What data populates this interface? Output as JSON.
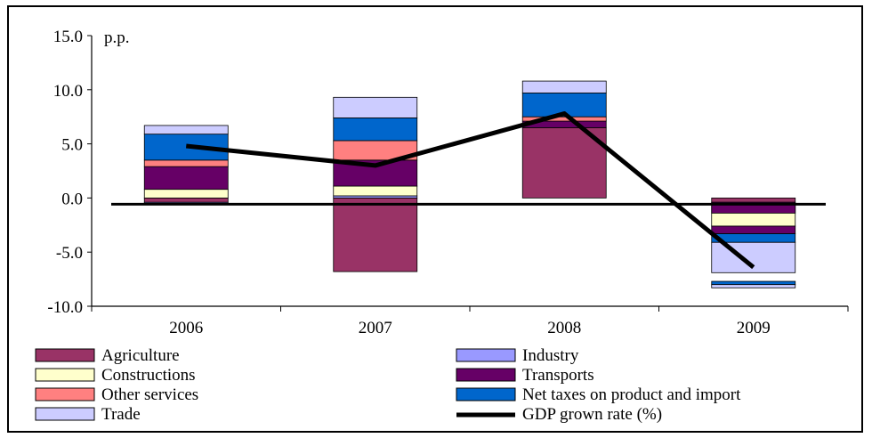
{
  "chart_data": {
    "type": "bar",
    "stacked": true,
    "unit_label": "p.p.",
    "categories": [
      "2006",
      "2007",
      "2008",
      "2009"
    ],
    "ylim": [
      -10,
      15
    ],
    "yticks": [
      "15.0",
      "10.0",
      "5.0",
      "0.0",
      "-5.0",
      "-10.0"
    ],
    "ytick_values": [
      15,
      10,
      5,
      0,
      -5,
      -10
    ],
    "grid": false,
    "legend_position": "bottom",
    "series": [
      {
        "name": "Agriculture",
        "color": "#993366",
        "values": [
          -0.4,
          -6.8,
          6.5,
          -0.4
        ]
      },
      {
        "name": "Industry",
        "color": "#9999FF",
        "values": [
          -0.2,
          0.2,
          0.0,
          -0.2
        ]
      },
      {
        "name": "Constructions",
        "color": "#FFFFCC",
        "values": [
          0.8,
          0.9,
          0.0,
          -2.0
        ]
      },
      {
        "name": "Transports",
        "color": "#660066",
        "values": [
          2.1,
          2.4,
          0.6,
          -0.7
        ]
      },
      {
        "name": "Other services",
        "color": "#FF8080",
        "values": [
          0.6,
          1.8,
          0.4,
          0.0
        ]
      },
      {
        "name": "Net taxes on product and import",
        "color": "#0066CC",
        "values": [
          2.4,
          2.1,
          2.2,
          -0.8
        ]
      },
      {
        "name": "Trade",
        "color": "#CCCCFF",
        "values": [
          0.8,
          1.9,
          1.1,
          -2.8
        ]
      }
    ],
    "line_series": {
      "name": "GDP grown rate (%)",
      "color": "#000000",
      "values": [
        4.8,
        3.0,
        7.8,
        -6.4
      ]
    },
    "hidden_segments": [
      {
        "category_index": 3,
        "color": "#660066",
        "from": -0.4,
        "to": -1.4
      },
      {
        "category_index": 3,
        "color": "#0066CC",
        "from": -7.7,
        "to": -8.0
      },
      {
        "category_index": 3,
        "color": "#CCCCFF",
        "from": -8.0,
        "to": -8.3
      }
    ],
    "legend_layout": [
      [
        "Agriculture",
        "Industry"
      ],
      [
        "Constructions",
        "Transports"
      ],
      [
        "Other services",
        "Net taxes on product and import"
      ],
      [
        "Trade",
        "GDP grown rate (%)"
      ]
    ]
  }
}
